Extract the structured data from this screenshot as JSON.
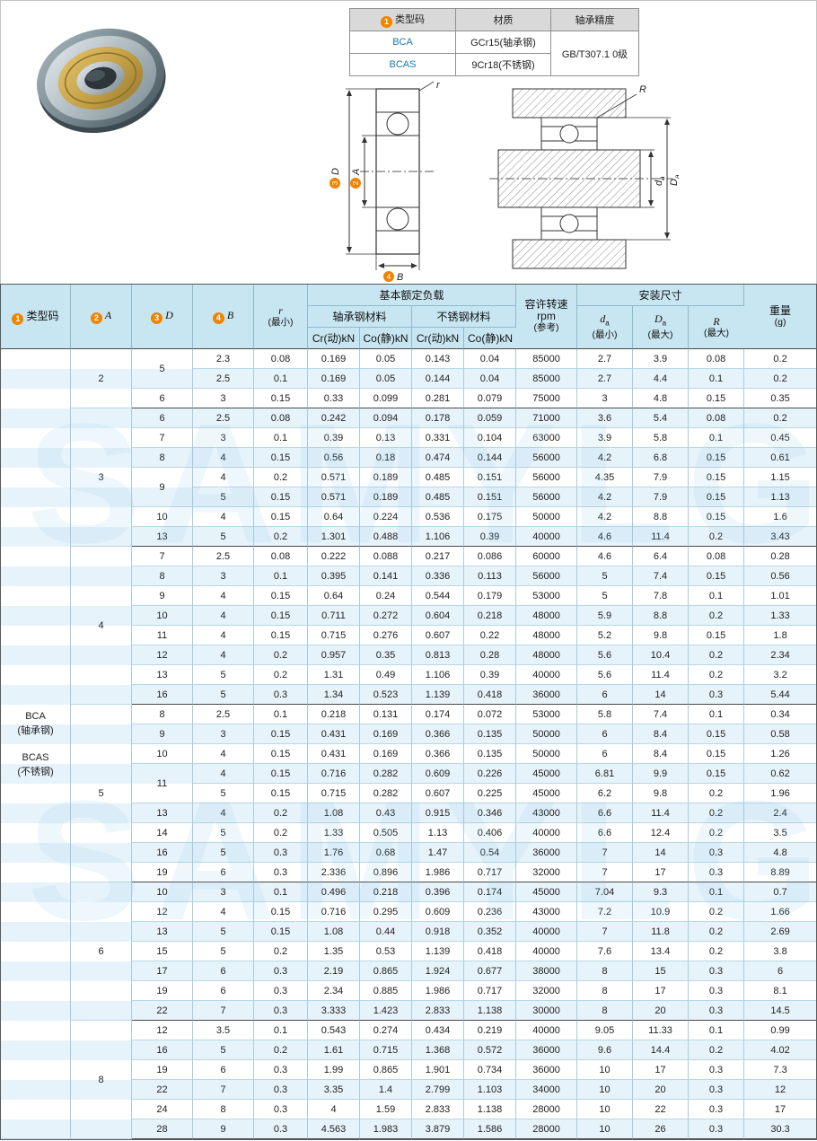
{
  "watermark": "SAMYLG",
  "info_table": {
    "badge1": "1",
    "col_type": "类型码",
    "col_material": "材质",
    "col_precision": "轴承精度",
    "rows": [
      {
        "code": "BCA",
        "material": "GCr15(轴承钢)"
      },
      {
        "code": "BCAS",
        "material": "9Cr18(不锈钢)"
      }
    ],
    "precision": "GB/T307.1 0级"
  },
  "diagrams": {
    "front": {
      "r": "r",
      "badge_D": "3",
      "D": "D",
      "badge_A": "2",
      "A": "A",
      "badge_B": "4",
      "B": "B"
    },
    "mounted": {
      "R": "R",
      "da_main": "d",
      "da_sub": "a",
      "Da_main": "D",
      "Da_sub": "a"
    }
  },
  "table": {
    "h_type_badge": "1",
    "h_type": "类型码",
    "h_a_badge": "2",
    "h_a": "A",
    "h_d_badge": "3",
    "h_d": "D",
    "h_b_badge": "4",
    "h_b": "B",
    "h_r": "r",
    "h_r_note": "(最小)",
    "h_load": "基本额定负载",
    "h_steel": "轴承钢材料",
    "h_stainless": "不锈钢材料",
    "h_cr": "Cr(动)kN",
    "h_co": "Co(静)kN",
    "h_speed1": "容许转速",
    "h_speed2": "rpm",
    "h_speed3": "(参考)",
    "h_mount": "安装尺寸",
    "h_da_main": "d",
    "h_da_sub": "a",
    "h_da_note": "(最小)",
    "h_Da_main": "D",
    "h_Da_sub": "a",
    "h_Da_note": "(最大)",
    "h_R": "R",
    "h_R_note": "(最大)",
    "h_w": "重量",
    "h_w_note": "(g)",
    "type_codes": [
      "BCA",
      "(轴承钢)",
      "",
      "BCAS",
      "(不锈钢)"
    ],
    "groups": [
      {
        "a": "2",
        "rows": [
          {
            "d": "5",
            "ds": 2,
            "b": "2.3",
            "r": "0.08",
            "c1": "0.169",
            "o1": "0.05",
            "c2": "0.143",
            "o2": "0.04",
            "n": "85000",
            "da": "2.7",
            "Da": "3.9",
            "R": "0.08",
            "w": "0.2"
          },
          {
            "d": null,
            "b": "2.5",
            "r": "0.1",
            "c1": "0.169",
            "o1": "0.05",
            "c2": "0.144",
            "o2": "0.04",
            "n": "85000",
            "da": "2.7",
            "Da": "4.4",
            "R": "0.1",
            "w": "0.2"
          },
          {
            "d": "6",
            "b": "3",
            "r": "0.15",
            "c1": "0.33",
            "o1": "0.099",
            "c2": "0.281",
            "o2": "0.079",
            "n": "75000",
            "da": "3",
            "Da": "4.8",
            "R": "0.15",
            "w": "0.35"
          }
        ]
      },
      {
        "a": "3",
        "rows": [
          {
            "d": "6",
            "b": "2.5",
            "r": "0.08",
            "c1": "0.242",
            "o1": "0.094",
            "c2": "0.178",
            "o2": "0.059",
            "n": "71000",
            "da": "3.6",
            "Da": "5.4",
            "R": "0.08",
            "w": "0.2"
          },
          {
            "d": "7",
            "b": "3",
            "r": "0.1",
            "c1": "0.39",
            "o1": "0.13",
            "c2": "0.331",
            "o2": "0.104",
            "n": "63000",
            "da": "3.9",
            "Da": "5.8",
            "R": "0.1",
            "w": "0.45"
          },
          {
            "d": "8",
            "b": "4",
            "r": "0.15",
            "c1": "0.56",
            "o1": "0.18",
            "c2": "0.474",
            "o2": "0.144",
            "n": "56000",
            "da": "4.2",
            "Da": "6.8",
            "R": "0.15",
            "w": "0.61"
          },
          {
            "d": "9",
            "ds": 2,
            "b": "4",
            "r": "0.2",
            "c1": "0.571",
            "o1": "0.189",
            "c2": "0.485",
            "o2": "0.151",
            "n": "56000",
            "da": "4.35",
            "Da": "7.9",
            "R": "0.15",
            "w": "1.15"
          },
          {
            "d": null,
            "b": "5",
            "r": "0.15",
            "c1": "0.571",
            "o1": "0.189",
            "c2": "0.485",
            "o2": "0.151",
            "n": "56000",
            "da": "4.2",
            "Da": "7.9",
            "R": "0.15",
            "w": "1.13"
          },
          {
            "d": "10",
            "b": "4",
            "r": "0.15",
            "c1": "0.64",
            "o1": "0.224",
            "c2": "0.536",
            "o2": "0.175",
            "n": "50000",
            "da": "4.2",
            "Da": "8.8",
            "R": "0.15",
            "w": "1.6"
          },
          {
            "d": "13",
            "b": "5",
            "r": "0.2",
            "c1": "1.301",
            "o1": "0.488",
            "c2": "1.106",
            "o2": "0.39",
            "n": "40000",
            "da": "4.6",
            "Da": "11.4",
            "R": "0.2",
            "w": "3.43"
          }
        ]
      },
      {
        "a": "4",
        "rows": [
          {
            "d": "7",
            "b": "2.5",
            "r": "0.08",
            "c1": "0.222",
            "o1": "0.088",
            "c2": "0.217",
            "o2": "0.086",
            "n": "60000",
            "da": "4.6",
            "Da": "6.4",
            "R": "0.08",
            "w": "0.28"
          },
          {
            "d": "8",
            "b": "3",
            "r": "0.1",
            "c1": "0.395",
            "o1": "0.141",
            "c2": "0.336",
            "o2": "0.113",
            "n": "56000",
            "da": "5",
            "Da": "7.4",
            "R": "0.15",
            "w": "0.56"
          },
          {
            "d": "9",
            "b": "4",
            "r": "0.15",
            "c1": "0.64",
            "o1": "0.24",
            "c2": "0.544",
            "o2": "0.179",
            "n": "53000",
            "da": "5",
            "Da": "7.8",
            "R": "0.1",
            "w": "1.01"
          },
          {
            "d": "10",
            "b": "4",
            "r": "0.15",
            "c1": "0.711",
            "o1": "0.272",
            "c2": "0.604",
            "o2": "0.218",
            "n": "48000",
            "da": "5.9",
            "Da": "8.8",
            "R": "0.2",
            "w": "1.33"
          },
          {
            "d": "11",
            "b": "4",
            "r": "0.15",
            "c1": "0.715",
            "o1": "0.276",
            "c2": "0.607",
            "o2": "0.22",
            "n": "48000",
            "da": "5.2",
            "Da": "9.8",
            "R": "0.15",
            "w": "1.8"
          },
          {
            "d": "12",
            "b": "4",
            "r": "0.2",
            "c1": "0.957",
            "o1": "0.35",
            "c2": "0.813",
            "o2": "0.28",
            "n": "48000",
            "da": "5.6",
            "Da": "10.4",
            "R": "0.2",
            "w": "2.34"
          },
          {
            "d": "13",
            "b": "5",
            "r": "0.2",
            "c1": "1.31",
            "o1": "0.49",
            "c2": "1.106",
            "o2": "0.39",
            "n": "40000",
            "da": "5.6",
            "Da": "11.4",
            "R": "0.2",
            "w": "3.2"
          },
          {
            "d": "16",
            "b": "5",
            "r": "0.3",
            "c1": "1.34",
            "o1": "0.523",
            "c2": "1.139",
            "o2": "0.418",
            "n": "36000",
            "da": "6",
            "Da": "14",
            "R": "0.3",
            "w": "5.44"
          }
        ]
      },
      {
        "a": "5",
        "rows": [
          {
            "d": "8",
            "b": "2.5",
            "r": "0.1",
            "c1": "0.218",
            "o1": "0.131",
            "c2": "0.174",
            "o2": "0.072",
            "n": "53000",
            "da": "5.8",
            "Da": "7.4",
            "R": "0.1",
            "w": "0.34"
          },
          {
            "d": "9",
            "b": "3",
            "r": "0.15",
            "c1": "0.431",
            "o1": "0.169",
            "c2": "0.366",
            "o2": "0.135",
            "n": "50000",
            "da": "6",
            "Da": "8.4",
            "R": "0.15",
            "w": "0.58"
          },
          {
            "d": "10",
            "b": "4",
            "r": "0.15",
            "c1": "0.431",
            "o1": "0.169",
            "c2": "0.366",
            "o2": "0.135",
            "n": "50000",
            "da": "6",
            "Da": "8.4",
            "R": "0.15",
            "w": "1.26"
          },
          {
            "d": "11",
            "ds": 2,
            "b": "4",
            "r": "0.15",
            "c1": "0.716",
            "o1": "0.282",
            "c2": "0.609",
            "o2": "0.226",
            "n": "45000",
            "da": "6.81",
            "Da": "9.9",
            "R": "0.15",
            "w": "0.62"
          },
          {
            "d": null,
            "b": "5",
            "r": "0.15",
            "c1": "0.715",
            "o1": "0.282",
            "c2": "0.607",
            "o2": "0.225",
            "n": "45000",
            "da": "6.2",
            "Da": "9.8",
            "R": "0.2",
            "w": "1.96"
          },
          {
            "d": "13",
            "b": "4",
            "r": "0.2",
            "c1": "1.08",
            "o1": "0.43",
            "c2": "0.915",
            "o2": "0.346",
            "n": "43000",
            "da": "6.6",
            "Da": "11.4",
            "R": "0.2",
            "w": "2.4"
          },
          {
            "d": "14",
            "b": "5",
            "r": "0.2",
            "c1": "1.33",
            "o1": "0.505",
            "c2": "1.13",
            "o2": "0.406",
            "n": "40000",
            "da": "6.6",
            "Da": "12.4",
            "R": "0.2",
            "w": "3.5"
          },
          {
            "d": "16",
            "b": "5",
            "r": "0.3",
            "c1": "1.76",
            "o1": "0.68",
            "c2": "1.47",
            "o2": "0.54",
            "n": "36000",
            "da": "7",
            "Da": "14",
            "R": "0.3",
            "w": "4.8"
          },
          {
            "d": "19",
            "b": "6",
            "r": "0.3",
            "c1": "2.336",
            "o1": "0.896",
            "c2": "1.986",
            "o2": "0.717",
            "n": "32000",
            "da": "7",
            "Da": "17",
            "R": "0.3",
            "w": "8.89"
          }
        ]
      },
      {
        "a": "6",
        "rows": [
          {
            "d": "10",
            "b": "3",
            "r": "0.1",
            "c1": "0.496",
            "o1": "0.218",
            "c2": "0.396",
            "o2": "0.174",
            "n": "45000",
            "da": "7.04",
            "Da": "9.3",
            "R": "0.1",
            "w": "0.7"
          },
          {
            "d": "12",
            "b": "4",
            "r": "0.15",
            "c1": "0.716",
            "o1": "0.295",
            "c2": "0.609",
            "o2": "0.236",
            "n": "43000",
            "da": "7.2",
            "Da": "10.9",
            "R": "0.2",
            "w": "1.66"
          },
          {
            "d": "13",
            "b": "5",
            "r": "0.15",
            "c1": "1.08",
            "o1": "0.44",
            "c2": "0.918",
            "o2": "0.352",
            "n": "40000",
            "da": "7",
            "Da": "11.8",
            "R": "0.2",
            "w": "2.69"
          },
          {
            "d": "15",
            "b": "5",
            "r": "0.2",
            "c1": "1.35",
            "o1": "0.53",
            "c2": "1.139",
            "o2": "0.418",
            "n": "40000",
            "da": "7.6",
            "Da": "13.4",
            "R": "0.2",
            "w": "3.8"
          },
          {
            "d": "17",
            "b": "6",
            "r": "0.3",
            "c1": "2.19",
            "o1": "0.865",
            "c2": "1.924",
            "o2": "0.677",
            "n": "38000",
            "da": "8",
            "Da": "15",
            "R": "0.3",
            "w": "6"
          },
          {
            "d": "19",
            "b": "6",
            "r": "0.3",
            "c1": "2.34",
            "o1": "0.885",
            "c2": "1.986",
            "o2": "0.717",
            "n": "32000",
            "da": "8",
            "Da": "17",
            "R": "0.3",
            "w": "8.1"
          },
          {
            "d": "22",
            "b": "7",
            "r": "0.3",
            "c1": "3.333",
            "o1": "1.423",
            "c2": "2.833",
            "o2": "1.138",
            "n": "30000",
            "da": "8",
            "Da": "20",
            "R": "0.3",
            "w": "14.5"
          }
        ]
      },
      {
        "a": "8",
        "rows": [
          {
            "d": "12",
            "b": "3.5",
            "r": "0.1",
            "c1": "0.543",
            "o1": "0.274",
            "c2": "0.434",
            "o2": "0.219",
            "n": "40000",
            "da": "9.05",
            "Da": "11.33",
            "R": "0.1",
            "w": "0.99"
          },
          {
            "d": "16",
            "b": "5",
            "r": "0.2",
            "c1": "1.61",
            "o1": "0.715",
            "c2": "1.368",
            "o2": "0.572",
            "n": "36000",
            "da": "9.6",
            "Da": "14.4",
            "R": "0.2",
            "w": "4.02"
          },
          {
            "d": "19",
            "b": "6",
            "r": "0.3",
            "c1": "1.99",
            "o1": "0.865",
            "c2": "1.901",
            "o2": "0.734",
            "n": "36000",
            "da": "10",
            "Da": "17",
            "R": "0.3",
            "w": "7.3"
          },
          {
            "d": "22",
            "b": "7",
            "r": "0.3",
            "c1": "3.35",
            "o1": "1.4",
            "c2": "2.799",
            "o2": "1.103",
            "n": "34000",
            "da": "10",
            "Da": "20",
            "R": "0.3",
            "w": "12"
          },
          {
            "d": "24",
            "b": "8",
            "r": "0.3",
            "c1": "4",
            "o1": "1.59",
            "c2": "2.833",
            "o2": "1.138",
            "n": "28000",
            "da": "10",
            "Da": "22",
            "R": "0.3",
            "w": "17"
          },
          {
            "d": "28",
            "b": "9",
            "r": "0.3",
            "c1": "4.563",
            "o1": "1.983",
            "c2": "3.879",
            "o2": "1.586",
            "n": "28000",
            "da": "10",
            "Da": "26",
            "R": "0.3",
            "w": "30.3"
          }
        ]
      }
    ]
  }
}
